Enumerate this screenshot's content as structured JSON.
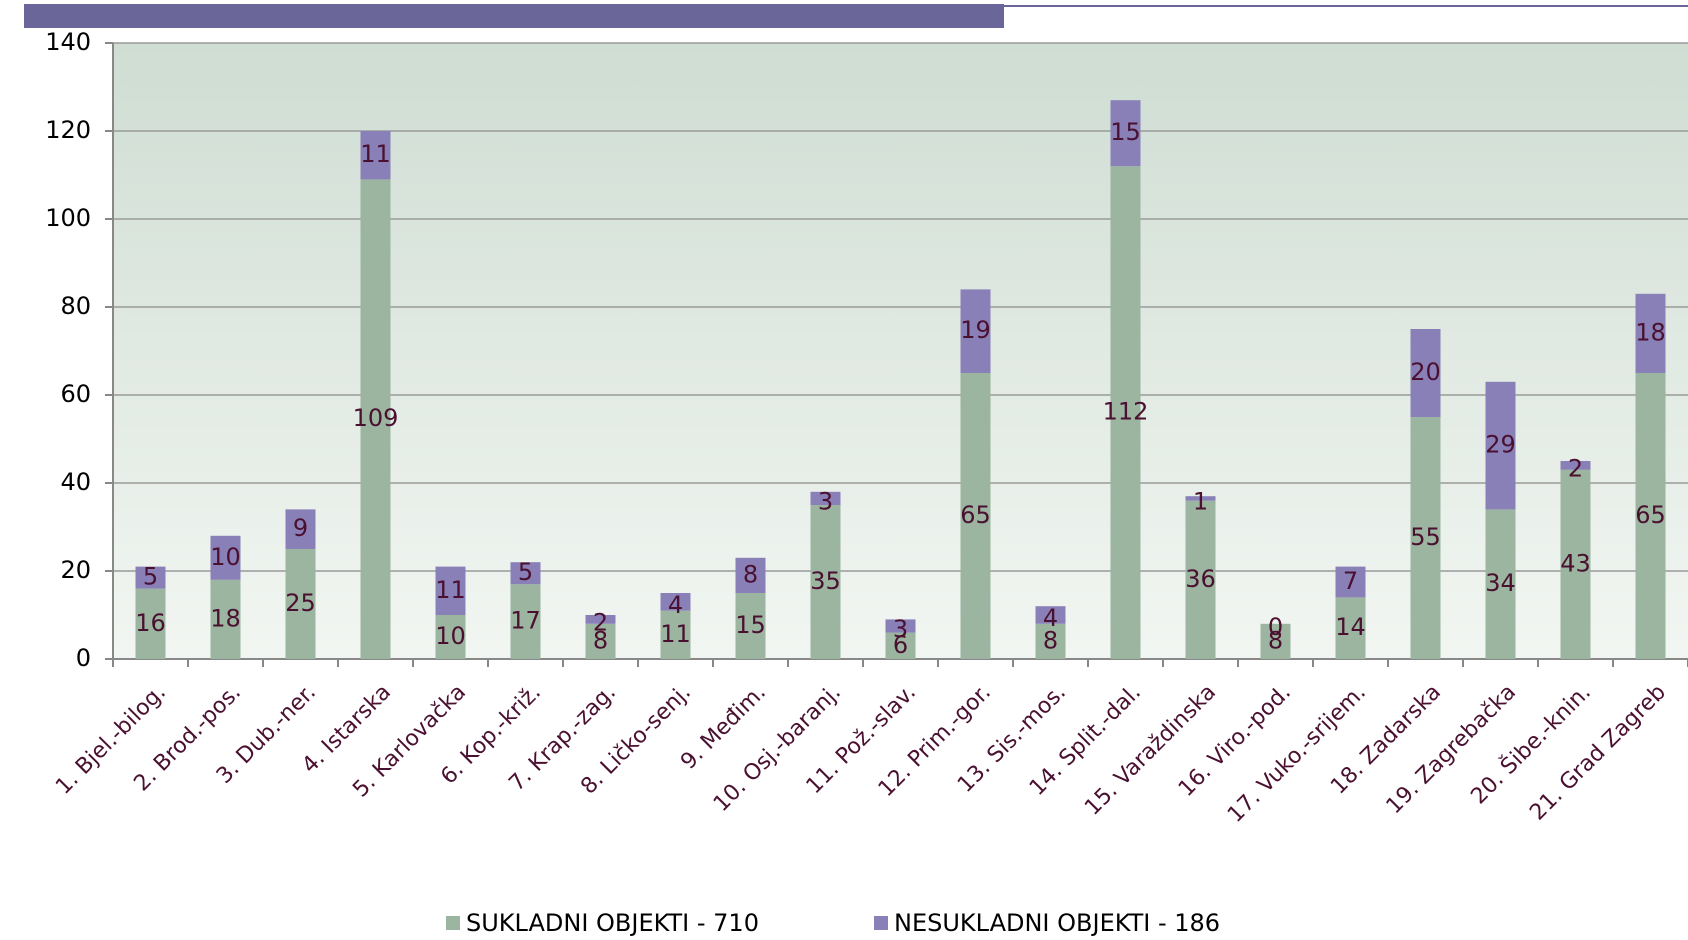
{
  "chart_data": {
    "type": "stacked_bar",
    "categories": [
      "1. Bjel.-bilog.",
      "2. Brod.-pos.",
      "3. Dub.-ner.",
      "4. Istarska",
      "5. Karlovačka",
      "6. Kop.-križ.",
      "7. Krap.-zag.",
      "8. Ličko-senj.",
      "9. Međim.",
      "10. Osj.-baranj.",
      "11. Pož.-slav.",
      "12. Prim.-gor.",
      "13. Sis.-mos.",
      "14. Split.-dal.",
      "15. Varaždinska",
      "16. Viro.-pod.",
      "17. Vuko.-srijem.",
      "18. Zadarska",
      "19. Zagrebačka",
      "20. Šibe.-knin.",
      "21. Grad Zagreb"
    ],
    "series": [
      {
        "name": "SUKLADNI OBJEKTI - 710",
        "color": "#9bb5a0",
        "values": [
          16,
          18,
          25,
          109,
          10,
          17,
          8,
          11,
          15,
          35,
          6,
          65,
          8,
          112,
          36,
          8,
          14,
          55,
          34,
          43,
          65
        ]
      },
      {
        "name": "NESUKLADNI OBJEKTI - 186",
        "color": "#8a80b8",
        "values": [
          5,
          10,
          9,
          11,
          11,
          5,
          2,
          4,
          8,
          3,
          3,
          19,
          4,
          15,
          1,
          0,
          7,
          20,
          29,
          2,
          18
        ]
      }
    ],
    "ylim": [
      0,
      140
    ],
    "yticks": [
      0,
      20,
      40,
      60,
      80,
      100,
      120,
      140
    ],
    "grid": true,
    "legend": "bottom"
  }
}
